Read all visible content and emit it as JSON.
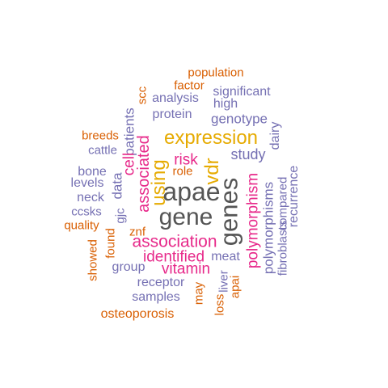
{
  "palette": {
    "orange": "#d95f02",
    "purple": "#7570b3",
    "magenta": "#e7298a",
    "gold": "#e6ab02",
    "gray": "#555555"
  },
  "words": [
    {
      "text": "population",
      "color": "orange",
      "weight": 1,
      "vertical": false
    },
    {
      "text": "factor",
      "color": "orange",
      "weight": 1,
      "vertical": false
    },
    {
      "text": "scc",
      "color": "orange",
      "weight": 1,
      "vertical": true
    },
    {
      "text": "significant",
      "color": "purple",
      "weight": 1,
      "vertical": false
    },
    {
      "text": "analysis",
      "color": "purple",
      "weight": 1,
      "vertical": false
    },
    {
      "text": "high",
      "color": "purple",
      "weight": 1,
      "vertical": false
    },
    {
      "text": "protein",
      "color": "purple",
      "weight": 1,
      "vertical": false
    },
    {
      "text": "genotype",
      "color": "purple",
      "weight": 1,
      "vertical": false
    },
    {
      "text": "patients",
      "color": "purple",
      "weight": 1,
      "vertical": true
    },
    {
      "text": "breeds",
      "color": "orange",
      "weight": 1,
      "vertical": false
    },
    {
      "text": "expression",
      "color": "gold",
      "weight": 3,
      "vertical": false
    },
    {
      "text": "dairy",
      "color": "purple",
      "weight": 1,
      "vertical": true
    },
    {
      "text": "cattle",
      "color": "purple",
      "weight": 1,
      "vertical": false
    },
    {
      "text": "study",
      "color": "purple",
      "weight": 2,
      "vertical": false
    },
    {
      "text": "risk",
      "color": "magenta",
      "weight": 2,
      "vertical": false
    },
    {
      "text": "cell",
      "color": "magenta",
      "weight": 2,
      "vertical": true
    },
    {
      "text": "associated",
      "color": "magenta",
      "weight": 2,
      "vertical": true
    },
    {
      "text": "bone",
      "color": "purple",
      "weight": 1,
      "vertical": false
    },
    {
      "text": "role",
      "color": "orange",
      "weight": 1,
      "vertical": false
    },
    {
      "text": "levels",
      "color": "purple",
      "weight": 1,
      "vertical": false
    },
    {
      "text": "data",
      "color": "purple",
      "weight": 2,
      "vertical": true
    },
    {
      "text": "using",
      "color": "gold",
      "weight": 3,
      "vertical": true
    },
    {
      "text": "vdr",
      "color": "gold",
      "weight": 3,
      "vertical": true
    },
    {
      "text": "apae",
      "color": "gray",
      "weight": 5,
      "vertical": false
    },
    {
      "text": "compared",
      "color": "purple",
      "weight": 1,
      "vertical": true
    },
    {
      "text": "recurrence",
      "color": "purple",
      "weight": 1,
      "vertical": true
    },
    {
      "text": "neck",
      "color": "purple",
      "weight": 1,
      "vertical": false
    },
    {
      "text": "gene",
      "color": "gray",
      "weight": 5,
      "vertical": false
    },
    {
      "text": "genes",
      "color": "gray",
      "weight": 5,
      "vertical": true
    },
    {
      "text": "polymorphism",
      "color": "magenta",
      "weight": 2,
      "vertical": true
    },
    {
      "text": "polymorphisms",
      "color": "purple",
      "weight": 1,
      "vertical": true
    },
    {
      "text": "fibroblasts",
      "color": "purple",
      "weight": 1,
      "vertical": true
    },
    {
      "text": "ccsks",
      "color": "purple",
      "weight": 1,
      "vertical": false
    },
    {
      "text": "gjc",
      "color": "purple",
      "weight": 1,
      "vertical": true
    },
    {
      "text": "quality",
      "color": "orange",
      "weight": 1,
      "vertical": false
    },
    {
      "text": "znf",
      "color": "orange",
      "weight": 1,
      "vertical": false
    },
    {
      "text": "found",
      "color": "orange",
      "weight": 1,
      "vertical": true
    },
    {
      "text": "association",
      "color": "magenta",
      "weight": 3,
      "vertical": false
    },
    {
      "text": "showed",
      "color": "orange",
      "weight": 1,
      "vertical": true
    },
    {
      "text": "identified",
      "color": "magenta",
      "weight": 2,
      "vertical": false
    },
    {
      "text": "meat",
      "color": "purple",
      "weight": 1,
      "vertical": false
    },
    {
      "text": "group",
      "color": "purple",
      "weight": 1,
      "vertical": false
    },
    {
      "text": "vitamin",
      "color": "magenta",
      "weight": 2,
      "vertical": false
    },
    {
      "text": "liver",
      "color": "purple",
      "weight": 1,
      "vertical": true
    },
    {
      "text": "apai",
      "color": "orange",
      "weight": 1,
      "vertical": true
    },
    {
      "text": "receptor",
      "color": "purple",
      "weight": 1,
      "vertical": false
    },
    {
      "text": "may",
      "color": "orange",
      "weight": 1,
      "vertical": true
    },
    {
      "text": "samples",
      "color": "purple",
      "weight": 1,
      "vertical": false
    },
    {
      "text": "loss",
      "color": "orange",
      "weight": 1,
      "vertical": true
    },
    {
      "text": "osteoporosis",
      "color": "orange",
      "weight": 1,
      "vertical": false
    }
  ]
}
